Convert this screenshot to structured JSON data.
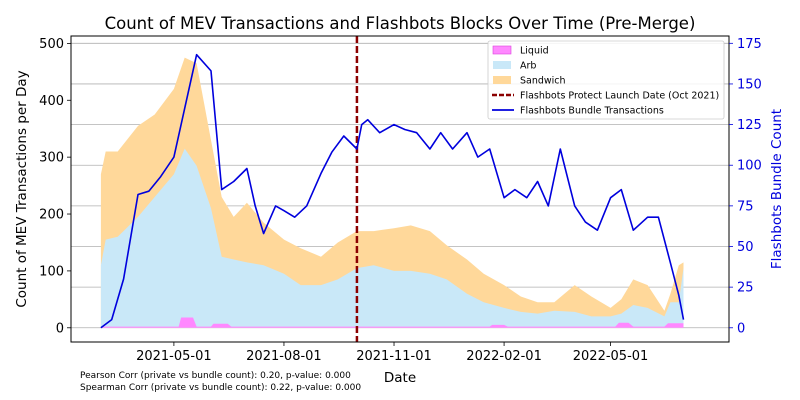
{
  "chart_data": {
    "type": "area",
    "title": "Count of MEV Transactions and Flashbots Blocks Over Time (Pre-Merge)",
    "xlabel": "Date",
    "ylabel_left": "Count of MEV Transactions per Day",
    "ylabel_right": "Flashbots Bundle Count",
    "x_ticks": [
      "2021-05-01",
      "2021-08-01",
      "2021-11-01",
      "2022-02-01",
      "2022-05-01"
    ],
    "y_left_ticks": [
      0,
      100,
      200,
      300,
      400,
      500
    ],
    "y_right_ticks": [
      0,
      25,
      50,
      75,
      100,
      125,
      150,
      175
    ],
    "y_left_range": [
      -25,
      513
    ],
    "y_right_range": [
      -8.75,
      179.5
    ],
    "x_range": [
      "2021-02-04",
      "2022-08-08"
    ],
    "grid": "horizontal-right-axis",
    "legend_position": "top-right",
    "colors": {
      "liquid": "#ff88ff",
      "arb": "#c9e8f8",
      "sandwich": "#ffd89a",
      "launch_line": "#8b0000",
      "bundle_line": "#0000dd",
      "right_axis": "#0000dd"
    },
    "legend": [
      {
        "label": "Liquid",
        "kind": "patch",
        "color": "#ff88ff"
      },
      {
        "label": "Arb",
        "kind": "patch",
        "color": "#c9e8f8"
      },
      {
        "label": "Sandwich",
        "kind": "patch",
        "color": "#ffd89a"
      },
      {
        "label": "Flashbots Protect Launch Date (Oct 2021)",
        "kind": "dashed",
        "color": "#8b0000"
      },
      {
        "label": "Flashbots Bundle Transactions",
        "kind": "line",
        "color": "#0000dd"
      }
    ],
    "launch_date": "2021-10-01",
    "series": [
      {
        "name": "Liquid",
        "stack": "base",
        "x": [
          "2021-03-01",
          "2021-05-01",
          "2021-05-05",
          "2021-05-07",
          "2021-05-17",
          "2021-05-20",
          "2021-06-01",
          "2021-06-03",
          "2021-06-15",
          "2021-06-18",
          "2021-08-01",
          "2022-01-20",
          "2022-01-22",
          "2022-02-01",
          "2022-02-04",
          "2022-05-05",
          "2022-05-08",
          "2022-05-16",
          "2022-05-20",
          "2022-06-15",
          "2022-06-18",
          "2022-06-27",
          "2022-07-01"
        ],
        "values": [
          2,
          2,
          2,
          18,
          18,
          2,
          2,
          7,
          7,
          2,
          2,
          2,
          5,
          5,
          2,
          2,
          9,
          9,
          2,
          2,
          8,
          8,
          8
        ]
      },
      {
        "name": "Arb",
        "stack": "top",
        "x": [
          "2021-03-01",
          "2021-03-05",
          "2021-03-15",
          "2021-04-01",
          "2021-04-15",
          "2021-05-01",
          "2021-05-10",
          "2021-05-20",
          "2021-06-01",
          "2021-06-10",
          "2021-06-20",
          "2021-07-01",
          "2021-07-15",
          "2021-08-01",
          "2021-08-15",
          "2021-09-01",
          "2021-09-15",
          "2021-10-01",
          "2021-10-15",
          "2021-11-01",
          "2021-11-15",
          "2021-12-01",
          "2021-12-15",
          "2022-01-01",
          "2022-01-15",
          "2022-02-01",
          "2022-02-15",
          "2022-03-01",
          "2022-03-15",
          "2022-04-01",
          "2022-04-15",
          "2022-05-01",
          "2022-05-10",
          "2022-05-20",
          "2022-06-01",
          "2022-06-15",
          "2022-06-20",
          "2022-06-27",
          "2022-07-01"
        ],
        "values": [
          110,
          155,
          160,
          195,
          230,
          270,
          315,
          285,
          210,
          125,
          120,
          115,
          110,
          95,
          75,
          75,
          85,
          105,
          110,
          100,
          100,
          95,
          85,
          60,
          45,
          35,
          28,
          25,
          30,
          28,
          20,
          20,
          25,
          40,
          35,
          20,
          45,
          45,
          105
        ]
      },
      {
        "name": "Sandwich",
        "stack": "top",
        "x": [
          "2021-03-01",
          "2021-03-05",
          "2021-03-15",
          "2021-04-01",
          "2021-04-15",
          "2021-05-01",
          "2021-05-10",
          "2021-05-20",
          "2021-06-01",
          "2021-06-10",
          "2021-06-20",
          "2021-07-01",
          "2021-07-15",
          "2021-08-01",
          "2021-08-15",
          "2021-09-01",
          "2021-09-15",
          "2021-10-01",
          "2021-10-15",
          "2021-11-01",
          "2021-11-15",
          "2021-12-01",
          "2021-12-15",
          "2022-01-01",
          "2022-01-15",
          "2022-02-01",
          "2022-02-15",
          "2022-03-01",
          "2022-03-15",
          "2022-04-01",
          "2022-04-15",
          "2022-05-01",
          "2022-05-10",
          "2022-05-20",
          "2022-06-01",
          "2022-06-15",
          "2022-06-20",
          "2022-06-27",
          "2022-07-01"
        ],
        "values": [
          270,
          310,
          310,
          355,
          375,
          420,
          475,
          465,
          330,
          230,
          195,
          220,
          185,
          155,
          140,
          125,
          150,
          170,
          170,
          175,
          180,
          170,
          145,
          120,
          95,
          75,
          55,
          45,
          45,
          75,
          55,
          35,
          50,
          85,
          75,
          30,
          60,
          110,
          115
        ]
      },
      {
        "name": "Flashbots Bundle Transactions",
        "axis": "right",
        "x": [
          "2021-03-01",
          "2021-03-10",
          "2021-03-20",
          "2021-04-01",
          "2021-04-10",
          "2021-04-20",
          "2021-05-01",
          "2021-05-10",
          "2021-05-20",
          "2021-06-01",
          "2021-06-10",
          "2021-06-20",
          "2021-07-01",
          "2021-07-08",
          "2021-07-15",
          "2021-07-25",
          "2021-08-01",
          "2021-08-10",
          "2021-08-20",
          "2021-09-01",
          "2021-09-10",
          "2021-09-20",
          "2021-10-01",
          "2021-10-05",
          "2021-10-10",
          "2021-10-20",
          "2021-11-01",
          "2021-11-10",
          "2021-11-20",
          "2021-12-01",
          "2021-12-10",
          "2021-12-20",
          "2022-01-01",
          "2022-01-10",
          "2022-01-20",
          "2022-02-01",
          "2022-02-10",
          "2022-02-20",
          "2022-03-01",
          "2022-03-10",
          "2022-03-20",
          "2022-04-01",
          "2022-04-10",
          "2022-04-20",
          "2022-05-01",
          "2022-05-10",
          "2022-05-20",
          "2022-06-01",
          "2022-06-10",
          "2022-06-20",
          "2022-06-27",
          "2022-07-01"
        ],
        "values": [
          0,
          5,
          30,
          82,
          84,
          93,
          105,
          135,
          168,
          158,
          85,
          90,
          98,
          75,
          58,
          75,
          72,
          68,
          75,
          95,
          108,
          118,
          110,
          125,
          128,
          120,
          125,
          122,
          120,
          110,
          120,
          110,
          120,
          105,
          110,
          80,
          85,
          80,
          90,
          75,
          110,
          75,
          65,
          60,
          80,
          85,
          60,
          68,
          68,
          40,
          20,
          5
        ]
      }
    ]
  },
  "footnotes": {
    "pearson": "Pearson Corr (private vs bundle count): 0.20, p-value: 0.000",
    "spearman": "Spearman Corr (private vs bundle count): 0.22, p-value: 0.000"
  }
}
